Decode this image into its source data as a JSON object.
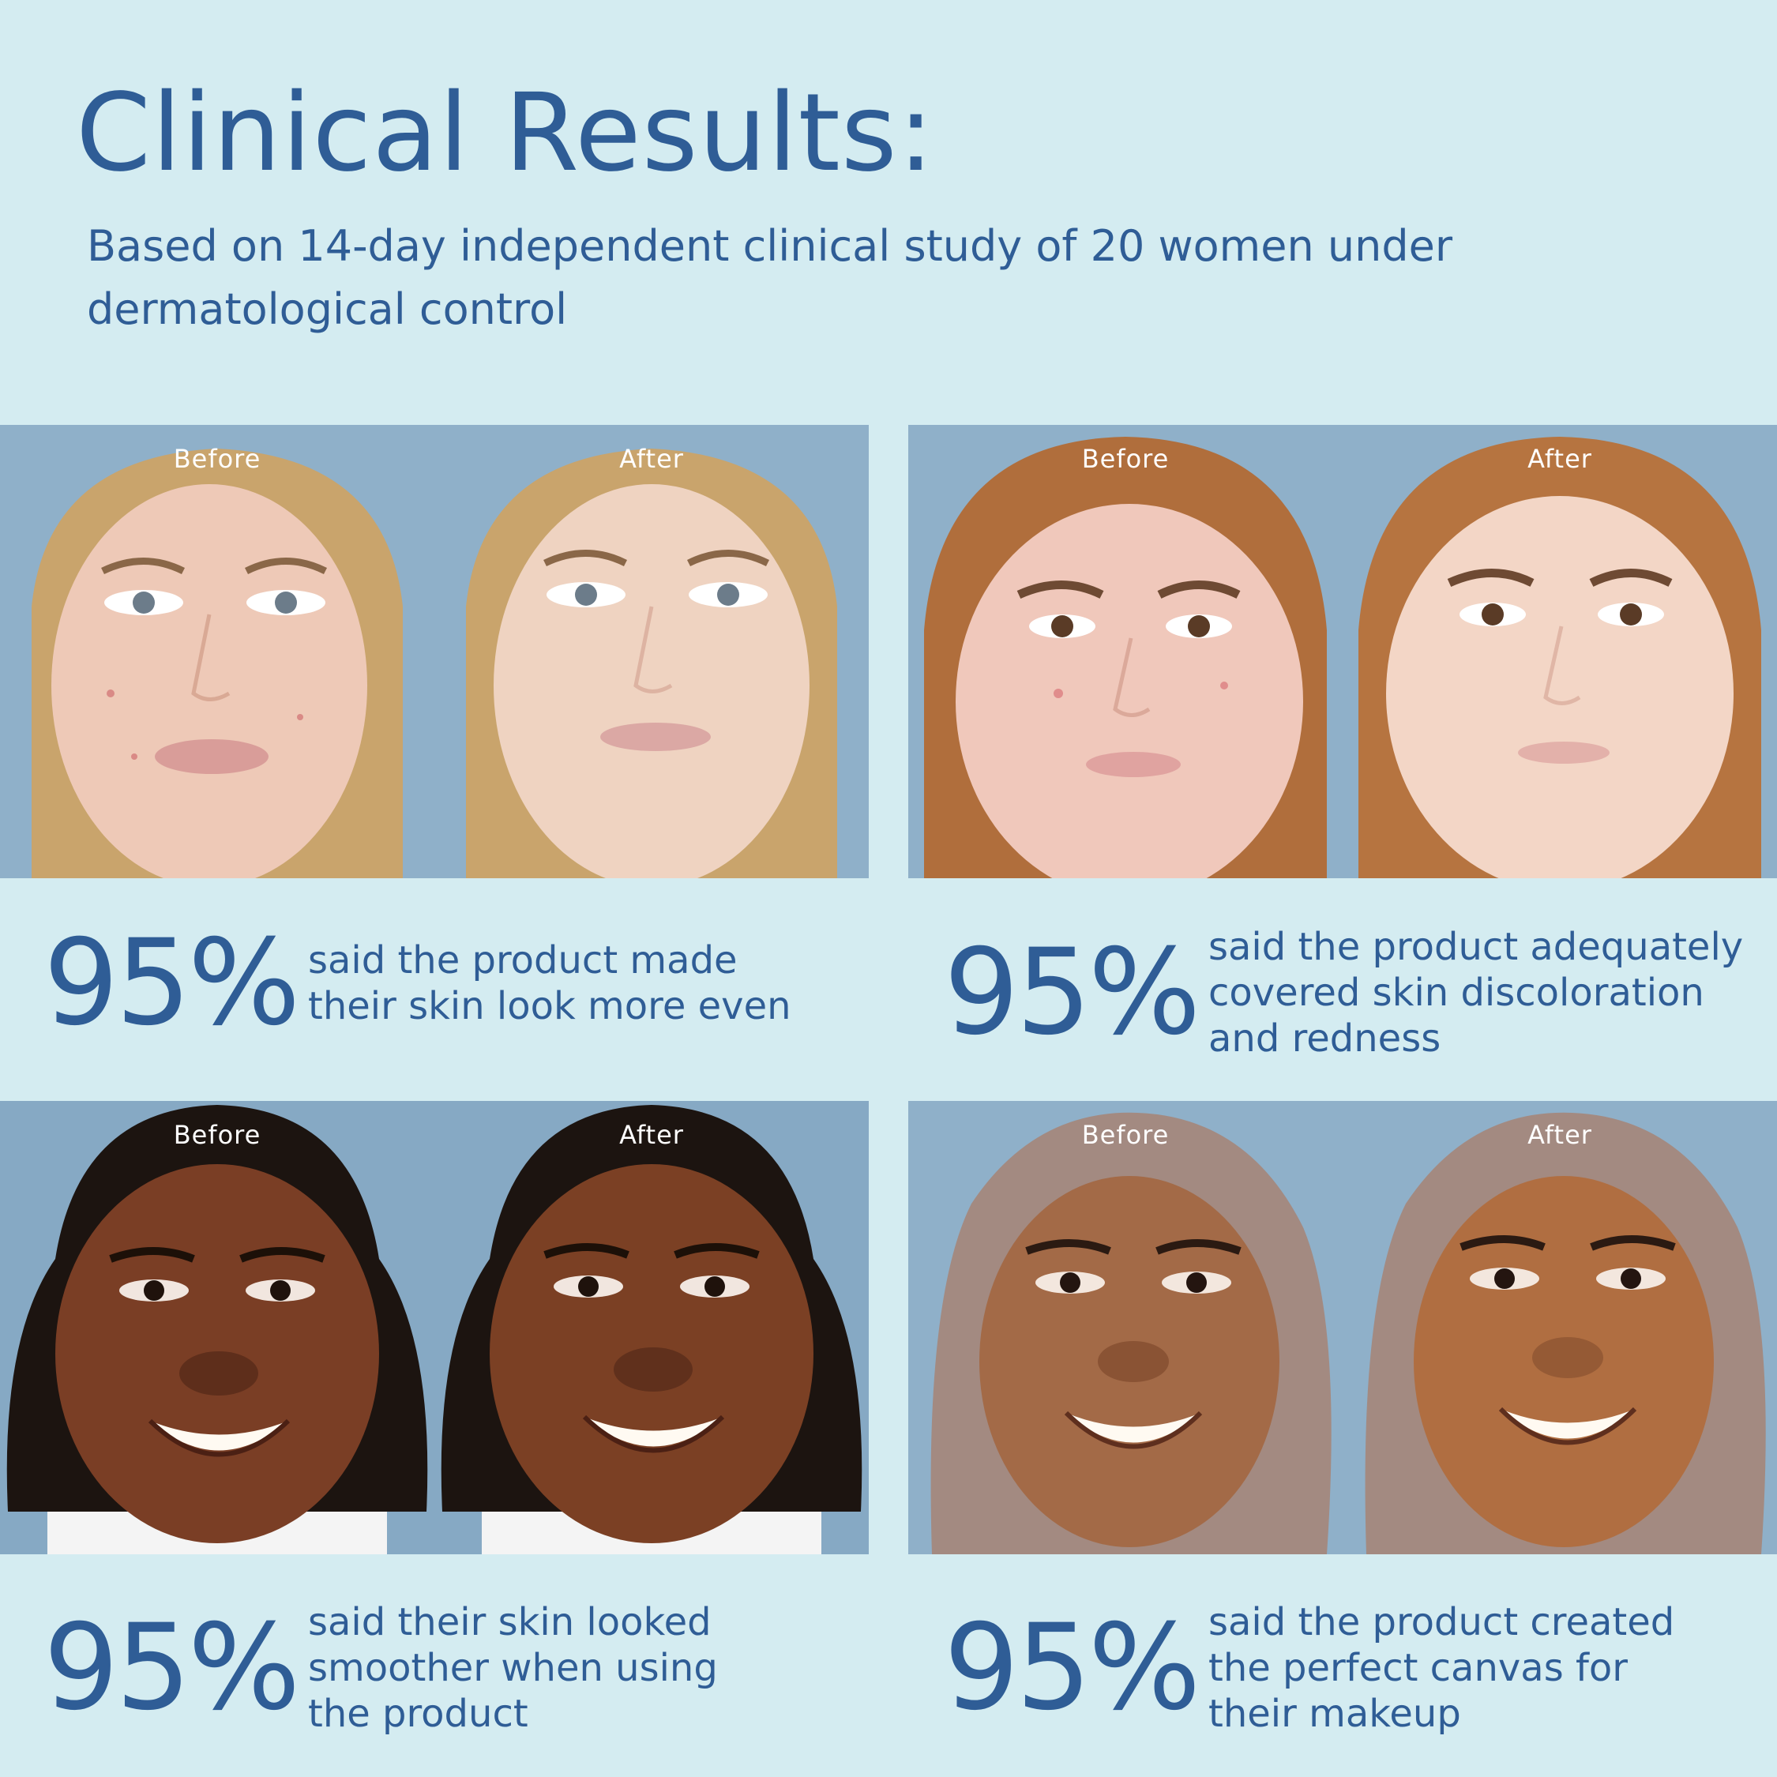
{
  "title": "Clinical Results:",
  "subtitle": "Based on 14-day independent clinical study of 20 women under dermatological control",
  "labels": {
    "before": "Before",
    "after": "After"
  },
  "panels": [
    {
      "stat": "95%",
      "text": "said the product made their skin look more even",
      "bg": "#8fb0c9",
      "hair": "#c9a46c",
      "skin_before": "#eec9b7",
      "skin_after": "#efd3c1"
    },
    {
      "stat": "95%",
      "text": "said the product adequately covered skin discoloration and redness",
      "bg": "#8fb0c9",
      "hair": "#b06e3c",
      "skin_before": "#f0c8bb",
      "skin_after": "#f3d6c6"
    },
    {
      "stat": "95%",
      "text": "said their skin looked smoother when using the product",
      "bg": "#86a9c4",
      "hair": "#1c1410",
      "skin_before": "#7a3e25",
      "skin_after": "#7b4024"
    },
    {
      "stat": "95%",
      "text": "said the product created the perfect canvas for their makeup",
      "bg": "#8fb0c9",
      "hair": "#a38a81",
      "skin_before": "#a36a47",
      "skin_after": "#b06e41"
    }
  ]
}
